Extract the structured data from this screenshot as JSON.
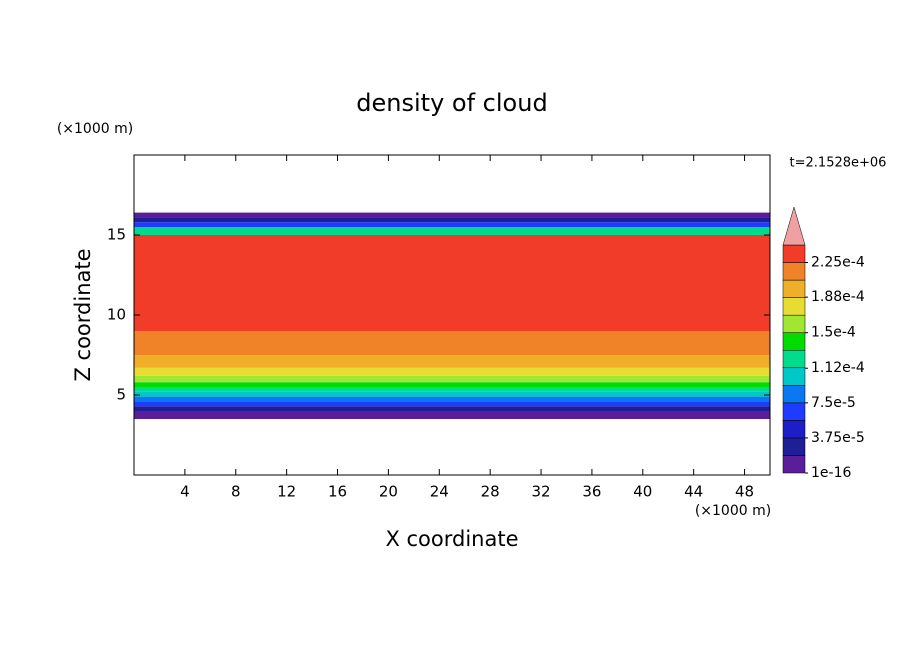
{
  "chart_data": {
    "type": "contour",
    "title": "density of cloud",
    "x_label": "X coordinate",
    "y_label": "Z coordinate",
    "x_unit": "(×1000 m)",
    "y_unit": "(×1000 m)",
    "time_label": "t=2.1528e+06",
    "xlim": [
      0,
      50
    ],
    "xticks": [
      4,
      8,
      12,
      16,
      20,
      24,
      28,
      32,
      36,
      40,
      44,
      48
    ],
    "ylim": [
      0,
      20
    ],
    "yticks": [
      5,
      10,
      15
    ],
    "profile": {
      "z": [
        3.5,
        4.0,
        4.3,
        4.6,
        4.9,
        5.2,
        5.5,
        5.8,
        6.2,
        6.7,
        7.5,
        9,
        15,
        15.5,
        15.8,
        16.1,
        16.4
      ],
      "values": [
        1e-05,
        3e-05,
        6e-05,
        8e-05,
        0.0001,
        0.00012,
        0.00014,
        0.00016,
        0.00018,
        0.000195,
        0.000215,
        0.00023,
        0.00013,
        7e-05,
        3e-05,
        1e-05,
        null
      ]
    },
    "clim": [
      0,
      0.00024375
    ],
    "colors": [
      "#5a1e9b",
      "#1e1e96",
      "#1e1ec8",
      "#1e3cff",
      "#0a78f0",
      "#00c8c8",
      "#00dc8c",
      "#00dc00",
      "#a0e632",
      "#e6dc32",
      "#f0af28",
      "#f08228",
      "#f03c28"
    ],
    "over_color": "#f0a0a0",
    "cticks": [
      {
        "value": 1e-16,
        "label": "1e-16"
      },
      {
        "value": 3.75e-05,
        "label": "3.75e-5"
      },
      {
        "value": 7.5e-05,
        "label": "7.5e-5"
      },
      {
        "value": 0.000112,
        "label": "1.12e-4"
      },
      {
        "value": 0.00015,
        "label": "1.5e-4"
      },
      {
        "value": 0.000188,
        "label": "1.88e-4"
      },
      {
        "value": 0.000225,
        "label": "2.25e-4"
      }
    ]
  }
}
